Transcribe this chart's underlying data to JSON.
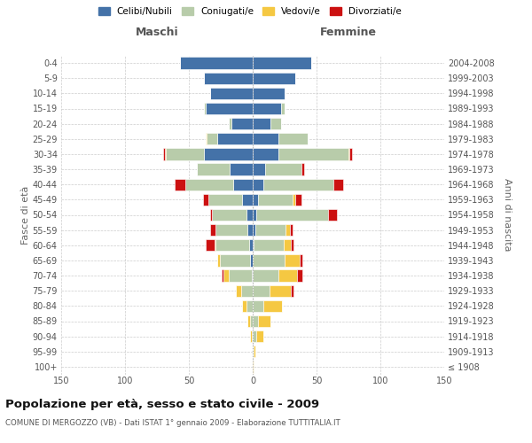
{
  "age_groups": [
    "100+",
    "95-99",
    "90-94",
    "85-89",
    "80-84",
    "75-79",
    "70-74",
    "65-69",
    "60-64",
    "55-59",
    "50-54",
    "45-49",
    "40-44",
    "35-39",
    "30-34",
    "25-29",
    "20-24",
    "15-19",
    "10-14",
    "5-9",
    "0-4"
  ],
  "birth_years": [
    "≤ 1908",
    "1909-1913",
    "1914-1918",
    "1919-1923",
    "1924-1928",
    "1929-1933",
    "1934-1938",
    "1939-1943",
    "1944-1948",
    "1949-1953",
    "1954-1958",
    "1959-1963",
    "1964-1968",
    "1969-1973",
    "1974-1978",
    "1979-1983",
    "1984-1988",
    "1989-1993",
    "1994-1998",
    "1999-2003",
    "2004-2008"
  ],
  "males_celibi": [
    0,
    0,
    0,
    0,
    0,
    0,
    1,
    2,
    3,
    4,
    5,
    8,
    15,
    18,
    38,
    28,
    17,
    37,
    33,
    38,
    57
  ],
  "males_coniugati": [
    0,
    0,
    1,
    2,
    5,
    9,
    18,
    24,
    26,
    25,
    27,
    27,
    38,
    26,
    30,
    8,
    2,
    1,
    0,
    0,
    0
  ],
  "males_vedovi": [
    0,
    0,
    1,
    2,
    3,
    4,
    4,
    2,
    1,
    0,
    0,
    0,
    0,
    0,
    1,
    1,
    0,
    0,
    0,
    0,
    0
  ],
  "males_divorziati": [
    0,
    0,
    0,
    0,
    0,
    0,
    1,
    0,
    7,
    4,
    1,
    4,
    8,
    0,
    1,
    0,
    0,
    0,
    0,
    0,
    0
  ],
  "females_nubili": [
    0,
    0,
    0,
    0,
    0,
    0,
    0,
    0,
    1,
    2,
    3,
    4,
    8,
    10,
    20,
    20,
    14,
    22,
    25,
    33,
    46
  ],
  "females_coniugate": [
    0,
    1,
    3,
    4,
    8,
    13,
    20,
    25,
    23,
    24,
    56,
    27,
    55,
    28,
    55,
    23,
    8,
    3,
    0,
    0,
    0
  ],
  "females_vedove": [
    1,
    1,
    5,
    10,
    15,
    17,
    15,
    12,
    6,
    3,
    0,
    2,
    0,
    0,
    1,
    0,
    0,
    0,
    0,
    0,
    0
  ],
  "females_divorziate": [
    0,
    0,
    0,
    0,
    0,
    2,
    4,
    2,
    2,
    2,
    7,
    5,
    8,
    2,
    2,
    0,
    0,
    0,
    0,
    0,
    0
  ],
  "color_celibi": "#4472a8",
  "color_coniugati": "#b8ccaa",
  "color_vedovi": "#f5c842",
  "color_divorziati": "#cc1111",
  "xlim": 150,
  "title": "Popolazione per età, sesso e stato civile - 2009",
  "subtitle": "COMUNE DI MERGOZZO (VB) - Dati ISTAT 1° gennaio 2009 - Elaborazione TUTTITALIA.IT",
  "label_maschi": "Maschi",
  "label_femmine": "Femmine",
  "ylabel_left": "Fasce di età",
  "ylabel_right": "Anni di nascita",
  "legend_labels": [
    "Celibi/Nubili",
    "Coniugati/e",
    "Vedovi/e",
    "Divorziati/e"
  ]
}
